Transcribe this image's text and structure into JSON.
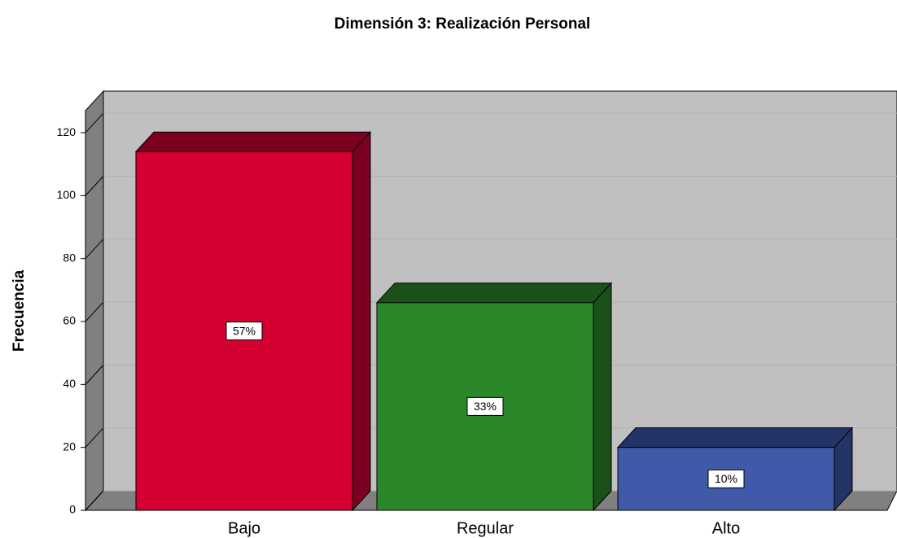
{
  "chart_data": {
    "type": "bar3d",
    "title": "Dimensión 3: Realización Personal",
    "y_label": "Frecuencia",
    "categories": [
      "Bajo",
      "Regular",
      "Alto"
    ],
    "values": [
      114,
      66,
      20
    ],
    "value_labels": [
      "57%",
      "33%",
      "10%"
    ],
    "colors": [
      "#d50032",
      "#2a882a",
      "#3f5aa9"
    ],
    "side_colors": [
      "#7c0020",
      "#1b501b",
      "#243466"
    ],
    "ylim": [
      0,
      127
    ],
    "yticks": [
      0,
      20,
      40,
      60,
      80,
      100,
      120
    ],
    "grid": true
  }
}
